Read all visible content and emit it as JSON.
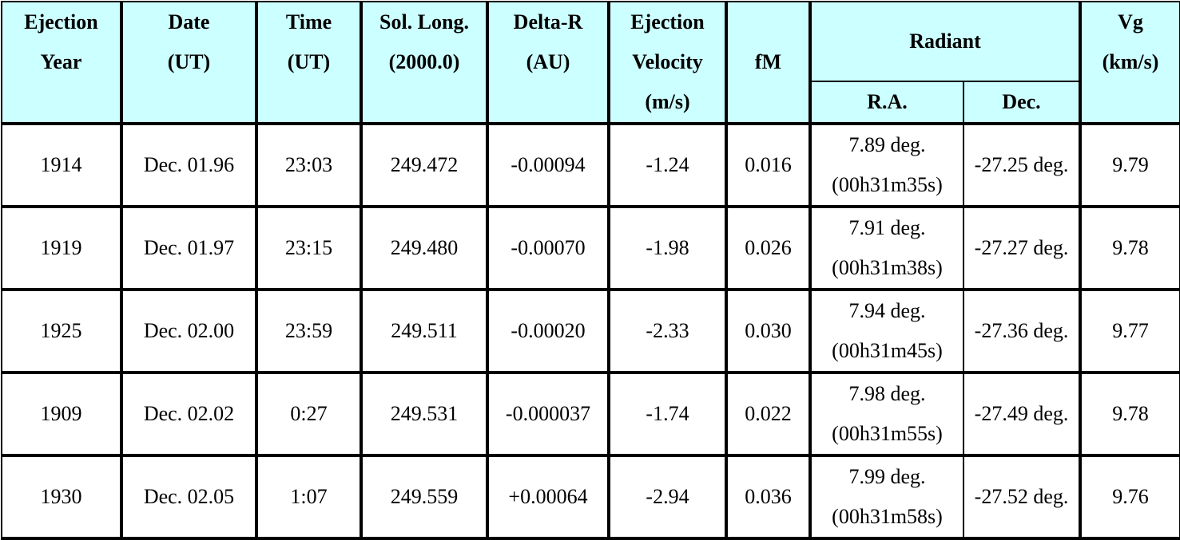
{
  "headers": {
    "ejection_year": [
      "Ejection",
      "Year"
    ],
    "date": [
      "Date",
      "(UT)"
    ],
    "time": [
      "Time",
      "(UT)"
    ],
    "sol_long": [
      "Sol. Long.",
      "(2000.0)"
    ],
    "delta_r": [
      "Delta-R",
      "(AU)"
    ],
    "ejection_velocity": [
      "Ejection",
      "Velocity",
      "(m/s)"
    ],
    "fm": "fM",
    "radiant": "Radiant",
    "ra": "R.A.",
    "dec": "Dec.",
    "vg": [
      "Vg",
      "(km/s)"
    ]
  },
  "rows": [
    {
      "year": "1914",
      "date": "Dec. 01.96",
      "time": "23:03",
      "sol_long": "249.472",
      "delta_r": "-0.00094",
      "velocity": "-1.24",
      "fm": "0.016",
      "ra_deg": "7.89 deg.",
      "ra_hms": "(00h31m35s)",
      "dec": "-27.25 deg.",
      "vg": "9.79"
    },
    {
      "year": "1919",
      "date": "Dec. 01.97",
      "time": "23:15",
      "sol_long": "249.480",
      "delta_r": "-0.00070",
      "velocity": "-1.98",
      "fm": "0.026",
      "ra_deg": "7.91 deg.",
      "ra_hms": "(00h31m38s)",
      "dec": "-27.27 deg.",
      "vg": "9.78"
    },
    {
      "year": "1925",
      "date": "Dec. 02.00",
      "time": "23:59",
      "sol_long": "249.511",
      "delta_r": "-0.00020",
      "velocity": "-2.33",
      "fm": "0.030",
      "ra_deg": "7.94 deg.",
      "ra_hms": "(00h31m45s)",
      "dec": "-27.36 deg.",
      "vg": "9.77"
    },
    {
      "year": "1909",
      "date": "Dec. 02.02",
      "time": "0:27",
      "sol_long": "249.531",
      "delta_r": "-0.000037",
      "velocity": "-1.74",
      "fm": "0.022",
      "ra_deg": "7.98 deg.",
      "ra_hms": "(00h31m55s)",
      "dec": "-27.49 deg.",
      "vg": "9.78"
    },
    {
      "year": "1930",
      "date": "Dec. 02.05",
      "time": "1:07",
      "sol_long": "249.559",
      "delta_r": "+0.00064",
      "velocity": "-2.94",
      "fm": "0.036",
      "ra_deg": "7.99 deg.",
      "ra_hms": "(00h31m58s)",
      "dec": "-27.52 deg.",
      "vg": "9.76"
    }
  ],
  "colors": {
    "header_bg": "#ccffff",
    "border": "#000000"
  }
}
